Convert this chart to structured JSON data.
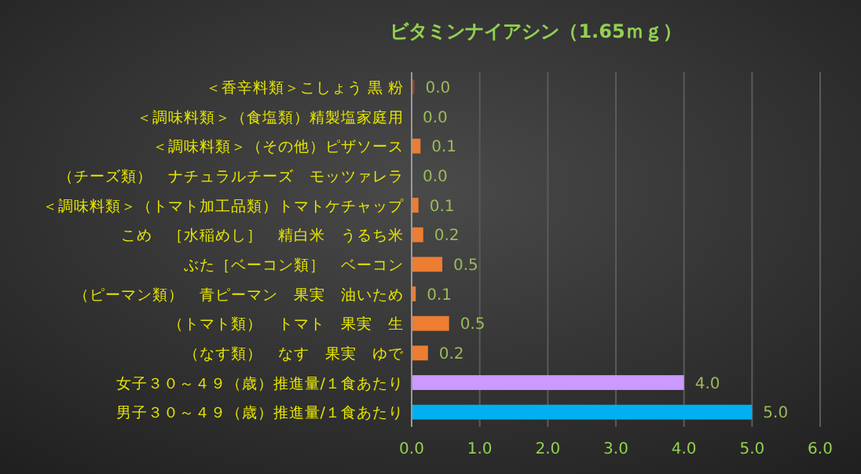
{
  "chart_data": {
    "type": "bar",
    "orientation": "horizontal",
    "title": "ビタミンナイアシン（1.65ｍｇ）",
    "categories": [
      "＜香辛料類＞こしょう 黒 粉",
      "＜調味料類＞（食塩類）精製塩家庭用",
      "＜調味料類＞（その他）ピザソース",
      "（チーズ類）　ナチュラルチーズ　モッツァレラ",
      "＜調味料類＞（トマト加工品類）トマトケチャップ",
      "こめ　［水稲めし］　精白米　うるち米",
      "ぶた［ベーコン類］　ベーコン",
      "（ピーマン類）　青ピーマン　果実　油いため",
      "（トマト類）　トマト　果実　生",
      "（なす類）　なす　果実　ゆで",
      "女子３０～４９（歳）推進量/１食あたり",
      "男子３０～４９（歳）推進量/１食あたり"
    ],
    "values": [
      0.04,
      0.0,
      0.13,
      0.0,
      0.1,
      0.17,
      0.45,
      0.06,
      0.55,
      0.24,
      4.0,
      5.0
    ],
    "colors": [
      "#8b4a2b",
      "#ed7d31",
      "#ed7d31",
      "#ed7d31",
      "#ed7d31",
      "#ed7d31",
      "#ed7d31",
      "#ed7d31",
      "#ed7d31",
      "#ed7d31",
      "#cc99ff",
      "#00b0f0"
    ],
    "value_labels": [
      "0.0",
      "0.0",
      "0.1",
      "0.0",
      "0.1",
      "0.2",
      "0.5",
      "0.1",
      "0.5",
      "0.2",
      "4.0",
      "5.0"
    ],
    "xlim": [
      0,
      6
    ],
    "xticks": [
      {
        "value": 0,
        "label": "0.0"
      },
      {
        "value": 1,
        "label": "1.0"
      },
      {
        "value": 2,
        "label": "2.0"
      },
      {
        "value": 3,
        "label": "3.0"
      },
      {
        "value": 4,
        "label": "4.0"
      },
      {
        "value": 5,
        "label": "5.0"
      },
      {
        "value": 6,
        "label": "6.0"
      }
    ],
    "grid": "x"
  }
}
